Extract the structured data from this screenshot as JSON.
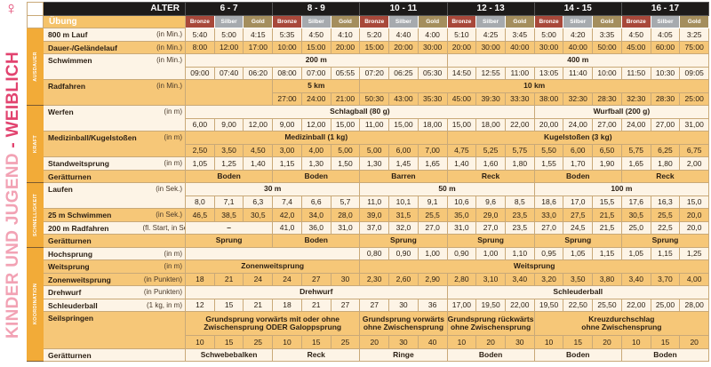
{
  "title": {
    "part1": "KINDER UND JUGEND",
    "part2": " - WEIBLICH",
    "symbol": "♀"
  },
  "header": {
    "alter_label": "ALTER",
    "ubung_label": "Übung",
    "ages": [
      "6 - 7",
      "8 - 9",
      "10 - 11",
      "12 - 13",
      "14 - 15",
      "16 - 17"
    ],
    "medals": [
      "Bronze",
      "Silber",
      "Gold"
    ]
  },
  "colors": {
    "orange": "#f6c778",
    "cream": "#fdf4e6",
    "category": "#f2ab38",
    "bronze": "#a8483a",
    "silber": "#a6aaae",
    "gold": "#a48e5d",
    "pink": "#e2436f"
  },
  "sections": [
    {
      "name": "AUSDAUER",
      "exercises": [
        {
          "label": "800 m Lauf",
          "unit": "(in Min.)",
          "hl": false,
          "rows": [
            [
              "5:40",
              "5:00",
              "4:15",
              "5:35",
              "4:50",
              "4:10",
              "5:20",
              "4:40",
              "4:00",
              "5:10",
              "4:25",
              "3:45",
              "5:00",
              "4:20",
              "3:35",
              "4:50",
              "4:05",
              "3:25"
            ]
          ]
        },
        {
          "label": "Dauer-/Geländelauf",
          "unit": "(in Min.)",
          "hl": true,
          "rows": [
            [
              "8:00",
              "12:00",
              "17:00",
              "10:00",
              "15:00",
              "20:00",
              "15:00",
              "20:00",
              "30:00",
              "20:00",
              "30:00",
              "40:00",
              "30:00",
              "40:00",
              "50:00",
              "45:00",
              "60:00",
              "75:00"
            ]
          ]
        },
        {
          "label": "Schwimmen",
          "unit": "(in Min.)",
          "hl": false,
          "rows": [
            [
              {
                "t": "200 m",
                "s": 9
              },
              {
                "t": "400 m",
                "s": 9
              }
            ],
            [
              "09:00",
              "07:40",
              "06:20",
              "08:00",
              "07:00",
              "05:55",
              "07:20",
              "06:25",
              "05:30",
              "14:50",
              "12:55",
              "11:00",
              "13:05",
              "11:40",
              "10:00",
              "11:50",
              "10:30",
              "09:05"
            ]
          ]
        },
        {
          "label": "Radfahren",
          "unit": "(in Min.)",
          "hl": true,
          "rows": [
            [
              {
                "t": "",
                "s": 3,
                "r": 2
              },
              {
                "t": "5 km",
                "s": 3
              },
              {
                "t": "10 km",
                "s": 12
              }
            ],
            [
              "27:00",
              "24:00",
              "21:00",
              "50:30",
              "43:00",
              "35:30",
              "45:00",
              "39:30",
              "33:30",
              "38:00",
              "32:30",
              "28:30",
              "32:30",
              "28:30",
              "25:00"
            ]
          ]
        }
      ]
    },
    {
      "name": "KRAFT",
      "exercises": [
        {
          "label": "Werfen",
          "unit": "(in m)",
          "hl": false,
          "rows": [
            [
              {
                "t": "Schlagball (80 g)",
                "s": 12
              },
              {
                "t": "Wurfball (200 g)",
                "s": 6
              }
            ],
            [
              "6,00",
              "9,00",
              "12,00",
              "9,00",
              "12,00",
              "15,00",
              "11,00",
              "15,00",
              "18,00",
              "15,00",
              "18,00",
              "22,00",
              "20,00",
              "24,00",
              "27,00",
              "24,00",
              "27,00",
              "31,00"
            ]
          ]
        },
        {
          "label": "Medizinball/Kugelstoßen",
          "unit": "(in m)",
          "hl": true,
          "rows": [
            [
              {
                "t": "Medizinball (1 kg)",
                "s": 9
              },
              {
                "t": "Kugelstoßen (3 kg)",
                "s": 9
              }
            ],
            [
              "2,50",
              "3,50",
              "4,50",
              "3,00",
              "4,00",
              "5,00",
              "5,00",
              "6,00",
              "7,00",
              "4,75",
              "5,25",
              "5,75",
              "5,50",
              "6,00",
              "6,50",
              "5,75",
              "6,25",
              "6,75"
            ]
          ]
        },
        {
          "label": "Standweitsprung",
          "unit": "(in m)",
          "hl": false,
          "rows": [
            [
              "1,05",
              "1,25",
              "1,40",
              "1,15",
              "1,30",
              "1,50",
              "1,30",
              "1,45",
              "1,65",
              "1,40",
              "1,60",
              "1,80",
              "1,55",
              "1,70",
              "1,90",
              "1,65",
              "1,80",
              "2,00"
            ]
          ]
        },
        {
          "label": "Gerätturnen",
          "unit": "",
          "hl": true,
          "rows": [
            [
              {
                "t": "Boden",
                "s": 3
              },
              {
                "t": "Boden",
                "s": 3
              },
              {
                "t": "Barren",
                "s": 3
              },
              {
                "t": "Reck",
                "s": 3
              },
              {
                "t": "Boden",
                "s": 3
              },
              {
                "t": "Reck",
                "s": 3
              }
            ]
          ]
        }
      ]
    },
    {
      "name": "SCHNELLIGKEIT",
      "exercises": [
        {
          "label": "Laufen",
          "unit": "(in Sek.)",
          "hl": false,
          "rows": [
            [
              {
                "t": "30 m",
                "s": 6
              },
              {
                "t": "50 m",
                "s": 6
              },
              {
                "t": "100 m",
                "s": 6
              }
            ],
            [
              "8,0",
              "7,1",
              "6,3",
              "7,4",
              "6,6",
              "5,7",
              "11,0",
              "10,1",
              "9,1",
              "10,6",
              "9,6",
              "8,5",
              "18,6",
              "17,0",
              "15,5",
              "17,6",
              "16,3",
              "15,0"
            ]
          ]
        },
        {
          "label": "25 m Schwimmen",
          "unit": "(in Sek.)",
          "hl": true,
          "rows": [
            [
              "46,5",
              "38,5",
              "30,5",
              "42,0",
              "34,0",
              "28,0",
              "39,0",
              "31,5",
              "25,5",
              "35,0",
              "29,0",
              "23,5",
              "33,0",
              "27,5",
              "21,5",
              "30,5",
              "25,5",
              "20,0"
            ]
          ]
        },
        {
          "label": "200 m Radfahren",
          "unit": "(fl. Start, in Sek.)",
          "hl": false,
          "rows": [
            [
              {
                "t": "–",
                "s": 3
              },
              "41,0",
              "36,0",
              "31,0",
              "37,0",
              "32,0",
              "27,0",
              "31,0",
              "27,0",
              "23,5",
              "27,0",
              "24,5",
              "21,5",
              "25,0",
              "22,5",
              "20,0"
            ]
          ]
        },
        {
          "label": "Gerätturnen",
          "unit": "",
          "hl": true,
          "rows": [
            [
              {
                "t": "Sprung",
                "s": 3
              },
              {
                "t": "Boden",
                "s": 3
              },
              {
                "t": "Sprung",
                "s": 3
              },
              {
                "t": "Sprung",
                "s": 3
              },
              {
                "t": "Sprung",
                "s": 3
              },
              {
                "t": "Sprung",
                "s": 3
              }
            ]
          ]
        }
      ]
    },
    {
      "name": "KOORDINATION",
      "exercises": [
        {
          "label": "Hochsprung",
          "unit": "(in m)",
          "hl": false,
          "rows": [
            [
              {
                "t": "",
                "s": 6
              },
              "0,80",
              "0,90",
              "1,00",
              "0,90",
              "1,00",
              "1,10",
              "0,95",
              "1,05",
              "1,15",
              "1,05",
              "1,15",
              "1,25"
            ]
          ]
        },
        {
          "label": "Weitsprung",
          "unit": "(in m)",
          "hl": true,
          "rows": [
            [
              {
                "t": "Zonenweitsprung",
                "s": 6
              },
              {
                "t": "Weitsprung",
                "s": 12
              }
            ]
          ]
        },
        {
          "label": "Zonenweitsprung",
          "unit": "(in Punkten)",
          "hl": true,
          "rows": [
            [
              "18",
              "21",
              "24",
              "24",
              "27",
              "30",
              "2,30",
              "2,60",
              "2,90",
              "2,80",
              "3,10",
              "3,40",
              "3,20",
              "3,50",
              "3,80",
              "3,40",
              "3,70",
              "4,00"
            ]
          ]
        },
        {
          "label": "Drehwurf",
          "unit": "(in Punkten)",
          "hl": false,
          "rows": [
            [
              {
                "t": "Drehwurf",
                "s": 9
              },
              {
                "t": "Schleuderball",
                "s": 9
              }
            ]
          ]
        },
        {
          "label": "Schleuderball",
          "unit": "(1 kg, in m)",
          "hl": false,
          "rows": [
            [
              "12",
              "15",
              "21",
              "18",
              "21",
              "27",
              "27",
              "30",
              "36",
              "17,00",
              "19,50",
              "22,00",
              "19,50",
              "22,50",
              "25,50",
              "22,00",
              "25,00",
              "28,00"
            ]
          ]
        },
        {
          "label": "Seilspringen",
          "unit": "",
          "hl": true,
          "tall": true,
          "rows": [
            [
              {
                "t": "Grundsprung vorwärts mit oder ohne\nZwischensprung ODER Galoppsprung",
                "s": 6
              },
              {
                "t": "Grundsprung vorwärts\nohne Zwischensprung",
                "s": 3
              },
              {
                "t": "Grundsprung rückwärts\nohne Zwischensprung",
                "s": 3
              },
              {
                "t": "Kreuzdurchschlag\nohne Zwischensprung",
                "s": 6
              }
            ],
            [
              "10",
              "15",
              "25",
              "10",
              "15",
              "25",
              "20",
              "30",
              "40",
              "10",
              "20",
              "30",
              "10",
              "15",
              "20",
              "10",
              "15",
              "20"
            ]
          ]
        },
        {
          "label": "Gerätturnen",
          "unit": "",
          "hl": false,
          "rows": [
            [
              {
                "t": "Schwebebalken",
                "s": 3
              },
              {
                "t": "Reck",
                "s": 3
              },
              {
                "t": "Ringe",
                "s": 3
              },
              {
                "t": "Boden",
                "s": 3
              },
              {
                "t": "Boden",
                "s": 3
              },
              {
                "t": "Boden",
                "s": 3
              }
            ]
          ]
        }
      ]
    }
  ]
}
